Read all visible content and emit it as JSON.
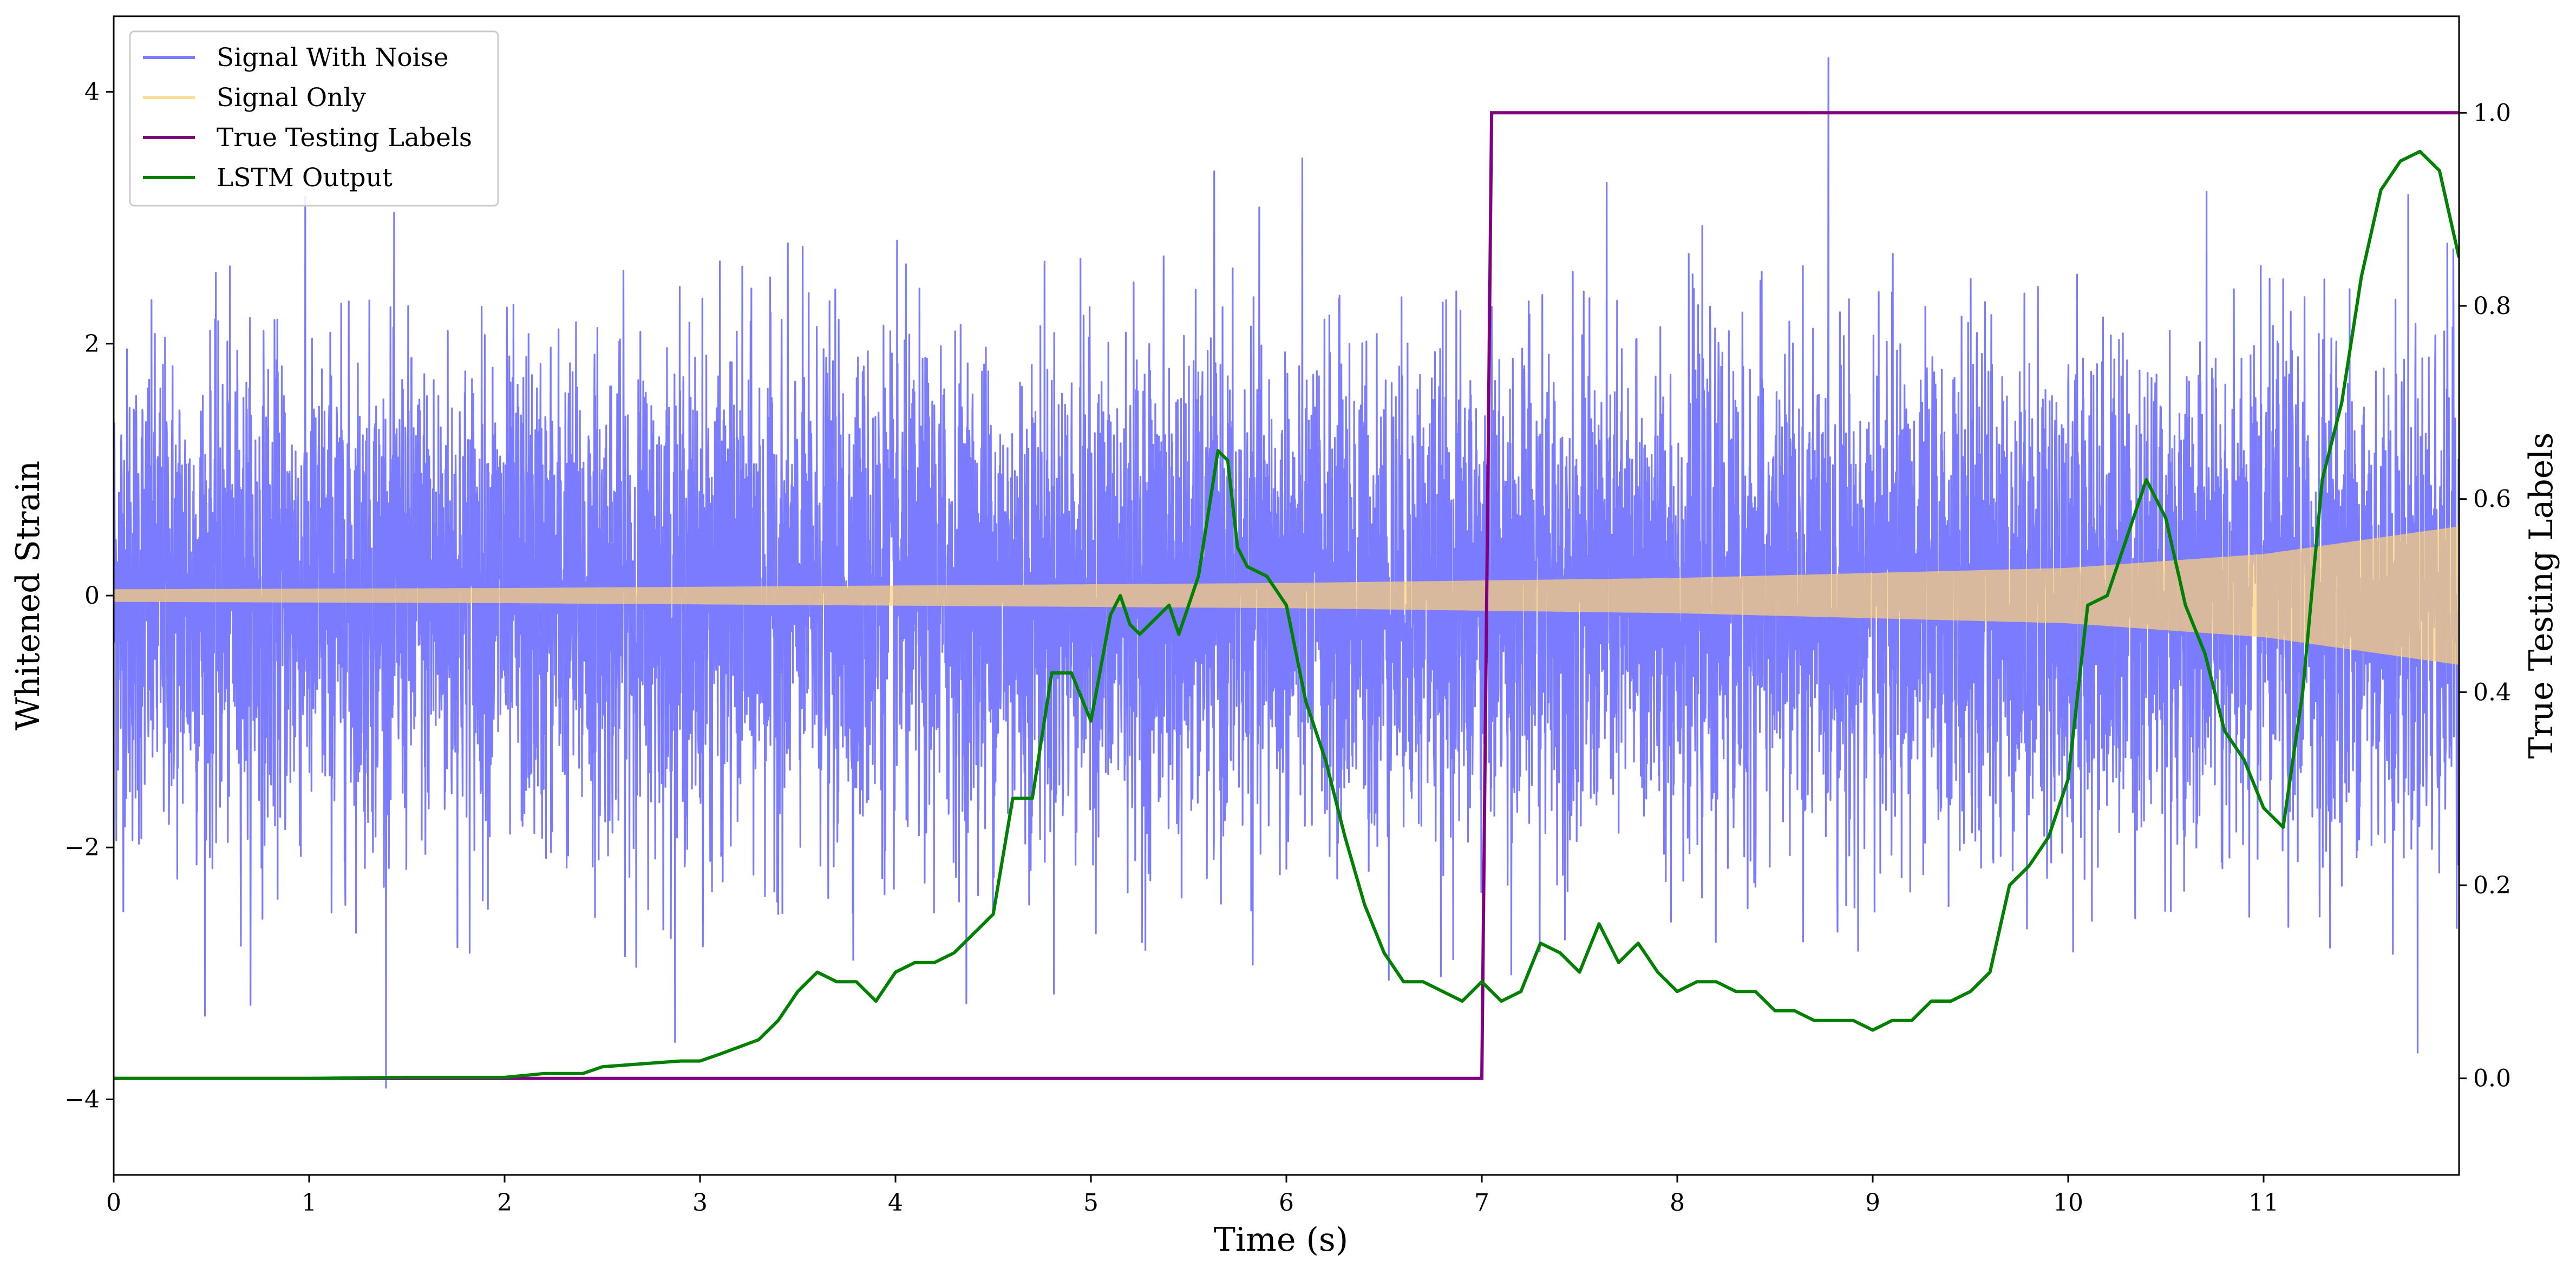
{
  "chart_data": {
    "type": "line",
    "xlabel": "Time (s)",
    "ylabel": "Whitened Strain",
    "y2label": "True Testing Labels",
    "xlim": [
      0,
      12
    ],
    "ylim": [
      -4.6,
      4.6
    ],
    "y2lim": [
      -0.1,
      1.1
    ],
    "xticks": [
      0,
      1,
      2,
      3,
      4,
      5,
      6,
      7,
      8,
      9,
      10,
      11
    ],
    "xtick_labels": [
      "0",
      "1",
      "2",
      "3",
      "4",
      "5",
      "6",
      "7",
      "8",
      "9",
      "10",
      "11"
    ],
    "yticks": [
      -4,
      -2,
      0,
      2,
      4
    ],
    "ytick_labels": [
      "−4",
      "−2",
      "0",
      "2",
      "4"
    ],
    "y2ticks": [
      0.0,
      0.2,
      0.4,
      0.6,
      0.8,
      1.0
    ],
    "y2tick_labels": [
      "0.0",
      "0.2",
      "0.4",
      "0.6",
      "0.8",
      "1.0"
    ],
    "legend_position": "upper-left",
    "grid": false,
    "series": [
      {
        "name": "Signal With Noise",
        "color": "#7b7bff",
        "axis": "left",
        "noise_range": [
          -4.15,
          4.27
        ],
        "typical_envelope": [
          -2.3,
          2.3
        ]
      },
      {
        "name": "Signal Only",
        "color": "#fcd177",
        "axis": "left",
        "envelope_amplitude": {
          "t": [
            0,
            2,
            4,
            6,
            8,
            10,
            11,
            12
          ],
          "amp": [
            0.05,
            0.06,
            0.08,
            0.1,
            0.14,
            0.22,
            0.33,
            0.55
          ]
        }
      },
      {
        "name": "True Testing Labels",
        "color": "#800080",
        "axis": "right",
        "x": [
          0,
          7.0,
          7.05,
          12
        ],
        "y": [
          0.0,
          0.0,
          1.0,
          1.0
        ]
      },
      {
        "name": "LSTM Output",
        "color": "#008000",
        "axis": "right",
        "x": [
          0,
          0.5,
          1.0,
          1.5,
          2.0,
          2.2,
          2.4,
          2.5,
          2.7,
          2.9,
          3.0,
          3.1,
          3.3,
          3.4,
          3.5,
          3.6,
          3.7,
          3.8,
          3.9,
          4.0,
          4.1,
          4.2,
          4.3,
          4.4,
          4.5,
          4.6,
          4.7,
          4.8,
          4.9,
          5.0,
          5.1,
          5.15,
          5.2,
          5.25,
          5.4,
          5.45,
          5.55,
          5.65,
          5.7,
          5.75,
          5.8,
          5.9,
          6.0,
          6.1,
          6.2,
          6.3,
          6.4,
          6.5,
          6.6,
          6.7,
          6.8,
          6.9,
          7.0,
          7.1,
          7.2,
          7.3,
          7.4,
          7.5,
          7.6,
          7.7,
          7.8,
          7.9,
          8.0,
          8.1,
          8.2,
          8.3,
          8.4,
          8.5,
          8.6,
          8.7,
          8.8,
          8.9,
          9.0,
          9.1,
          9.2,
          9.3,
          9.4,
          9.5,
          9.6,
          9.7,
          9.8,
          9.9,
          10.0,
          10.1,
          10.2,
          10.3,
          10.4,
          10.5,
          10.6,
          10.7,
          10.8,
          10.9,
          11.0,
          11.1,
          11.2,
          11.3,
          11.4,
          11.5,
          11.6,
          11.7,
          11.8,
          11.9,
          12.0
        ],
        "y": [
          0.0,
          0.0,
          0.0,
          0.001,
          0.001,
          0.005,
          0.005,
          0.012,
          0.015,
          0.018,
          0.018,
          0.025,
          0.04,
          0.06,
          0.09,
          0.11,
          0.1,
          0.1,
          0.08,
          0.11,
          0.12,
          0.12,
          0.13,
          0.15,
          0.17,
          0.29,
          0.29,
          0.42,
          0.42,
          0.37,
          0.48,
          0.5,
          0.47,
          0.46,
          0.49,
          0.46,
          0.52,
          0.65,
          0.64,
          0.55,
          0.53,
          0.52,
          0.49,
          0.39,
          0.33,
          0.25,
          0.18,
          0.13,
          0.1,
          0.1,
          0.09,
          0.08,
          0.1,
          0.08,
          0.09,
          0.14,
          0.13,
          0.11,
          0.16,
          0.12,
          0.14,
          0.11,
          0.09,
          0.1,
          0.1,
          0.09,
          0.09,
          0.07,
          0.07,
          0.06,
          0.06,
          0.06,
          0.05,
          0.06,
          0.06,
          0.08,
          0.08,
          0.09,
          0.11,
          0.2,
          0.22,
          0.25,
          0.31,
          0.49,
          0.5,
          0.56,
          0.62,
          0.58,
          0.49,
          0.44,
          0.36,
          0.33,
          0.28,
          0.26,
          0.4,
          0.62,
          0.7,
          0.83,
          0.92,
          0.95,
          0.96,
          0.94,
          0.85
        ]
      }
    ]
  }
}
